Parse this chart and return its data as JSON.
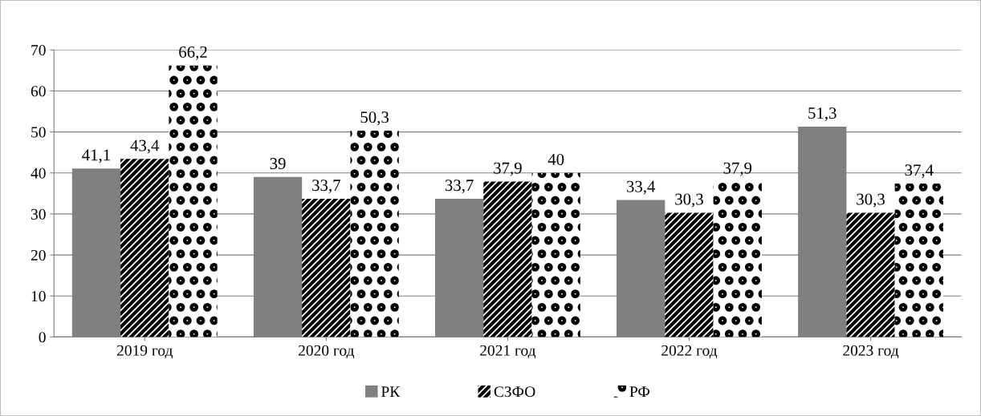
{
  "chart_data": {
    "type": "bar",
    "categories": [
      "2019 год",
      "2020 год",
      "2021 год",
      "2022 год",
      "2023 год"
    ],
    "series": [
      {
        "name": "РК",
        "color": "#808080",
        "values": [
          41.1,
          39,
          33.7,
          33.4,
          51.3
        ],
        "value_labels": [
          "41,1",
          "39",
          "33,7",
          "33,4",
          "51,3"
        ]
      },
      {
        "name": "СЗФО",
        "color": "#000000",
        "values": [
          43.4,
          33.7,
          37.9,
          30.3,
          30.3
        ],
        "value_labels": [
          "43,4",
          "33,7",
          "37,9",
          "30,3",
          "30,3"
        ]
      },
      {
        "name": "РФ",
        "color": "#000000",
        "values": [
          66.2,
          50.3,
          40,
          37.9,
          37.4
        ],
        "value_labels": [
          "66,2",
          "50,3",
          "40",
          "37,9",
          "37,4"
        ]
      }
    ],
    "ylim": [
      0,
      70
    ],
    "yticks": [
      0,
      10,
      20,
      30,
      40,
      50,
      60,
      70
    ],
    "grid": "y",
    "legend": "bottom"
  }
}
